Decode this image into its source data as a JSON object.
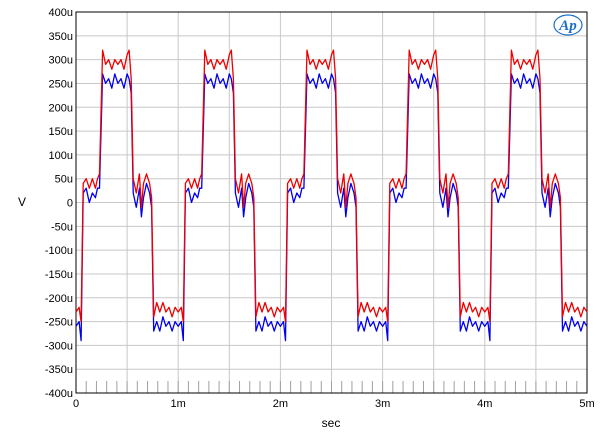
{
  "chart_data": {
    "type": "line",
    "title": "",
    "xlabel": "sec",
    "ylabel": "V",
    "xlim": [
      0,
      0.005
    ],
    "ylim": [
      -0.0004,
      0.0004
    ],
    "x_ticks": [
      {
        "value": 0,
        "label": "0"
      },
      {
        "value": 0.001,
        "label": "1m"
      },
      {
        "value": 0.002,
        "label": "2m"
      },
      {
        "value": 0.003,
        "label": "3m"
      },
      {
        "value": 0.004,
        "label": "4m"
      },
      {
        "value": 0.005,
        "label": "5m"
      }
    ],
    "y_ticks": [
      {
        "value": 0.0004,
        "label": "400u"
      },
      {
        "value": 0.00035,
        "label": "350u"
      },
      {
        "value": 0.0003,
        "label": "300u"
      },
      {
        "value": 0.00025,
        "label": "250u"
      },
      {
        "value": 0.0002,
        "label": "200u"
      },
      {
        "value": 0.00015,
        "label": "150u"
      },
      {
        "value": 0.0001,
        "label": "100u"
      },
      {
        "value": 5e-05,
        "label": "50u"
      },
      {
        "value": 0,
        "label": "0"
      },
      {
        "value": -5e-05,
        "label": "-50u"
      },
      {
        "value": -0.0001,
        "label": "-100u"
      },
      {
        "value": -0.00015,
        "label": "-150u"
      },
      {
        "value": -0.0002,
        "label": "-200u"
      },
      {
        "value": -0.00025,
        "label": "-250u"
      },
      {
        "value": -0.0003,
        "label": "-300u"
      },
      {
        "value": -0.00035,
        "label": "-350u"
      },
      {
        "value": -0.0004,
        "label": "-400u"
      }
    ],
    "grid": true,
    "logo": "Ap",
    "series": [
      {
        "color": "#0000ee",
        "period": 0.001,
        "phase_start": 3e-05,
        "shape": [
          [
            0.0,
            -0.00025
          ],
          [
            2e-05,
            -0.00029
          ],
          [
            4e-05,
            2e-05
          ],
          [
            7e-05,
            3e-05
          ],
          [
            0.0001,
            0.0
          ],
          [
            0.00013,
            2e-05
          ],
          [
            0.00016,
            1e-05
          ],
          [
            0.00018,
            3e-05
          ],
          [
            0.0002,
            3e-05
          ],
          [
            0.00023,
            0.00027
          ],
          [
            0.00026,
            0.00025
          ],
          [
            0.00029,
            0.00026
          ],
          [
            0.00032,
            0.00024
          ],
          [
            0.00035,
            0.00027
          ],
          [
            0.00038,
            0.00025
          ],
          [
            0.00041,
            0.00026
          ],
          [
            0.00044,
            0.00024
          ],
          [
            0.00047,
            0.00027
          ],
          [
            0.00049,
            0.00026
          ],
          [
            0.00051,
            0.00023
          ],
          [
            0.00053,
            2e-05
          ],
          [
            0.00056,
            -1e-05
          ],
          [
            0.00059,
            3e-05
          ],
          [
            0.00061,
            -3e-05
          ],
          [
            0.00063,
            1e-05
          ],
          [
            0.00066,
            4e-05
          ],
          [
            0.00069,
            2e-05
          ],
          [
            0.00071,
            -1e-05
          ],
          [
            0.00073,
            -0.00027
          ],
          [
            0.00076,
            -0.00025
          ],
          [
            0.00079,
            -0.00027
          ],
          [
            0.00082,
            -0.00024
          ],
          [
            0.00085,
            -0.00026
          ],
          [
            0.00088,
            -0.00025
          ],
          [
            0.00091,
            -0.00027
          ],
          [
            0.00094,
            -0.00025
          ],
          [
            0.00097,
            -0.00026
          ],
          [
            0.001,
            -0.00025
          ]
        ]
      },
      {
        "color": "#ee0000",
        "period": 0.001,
        "phase_start": 3e-05,
        "shape": [
          [
            0.0,
            -0.00022
          ],
          [
            2e-05,
            -0.00025
          ],
          [
            4e-05,
            4e-05
          ],
          [
            7e-05,
            5e-05
          ],
          [
            0.0001,
            3e-05
          ],
          [
            0.00013,
            5e-05
          ],
          [
            0.00016,
            3e-05
          ],
          [
            0.00018,
            5e-05
          ],
          [
            0.0002,
            6e-05
          ],
          [
            0.00023,
            0.00032
          ],
          [
            0.00026,
            0.00029
          ],
          [
            0.00029,
            0.0003
          ],
          [
            0.00032,
            0.00028
          ],
          [
            0.00035,
            0.0003
          ],
          [
            0.00038,
            0.00029
          ],
          [
            0.00041,
            0.0003
          ],
          [
            0.00044,
            0.00028
          ],
          [
            0.00047,
            0.00031
          ],
          [
            0.00049,
            0.00032
          ],
          [
            0.00051,
            0.00026
          ],
          [
            0.00053,
            5e-05
          ],
          [
            0.00056,
            2e-05
          ],
          [
            0.00059,
            6e-05
          ],
          [
            0.00061,
            -1e-05
          ],
          [
            0.00063,
            4e-05
          ],
          [
            0.00066,
            6e-05
          ],
          [
            0.00069,
            4e-05
          ],
          [
            0.00071,
            1e-05
          ],
          [
            0.00073,
            -0.00024
          ],
          [
            0.00076,
            -0.00021
          ],
          [
            0.00079,
            -0.00023
          ],
          [
            0.00082,
            -0.00021
          ],
          [
            0.00085,
            -0.00023
          ],
          [
            0.00088,
            -0.00022
          ],
          [
            0.00091,
            -0.00024
          ],
          [
            0.00094,
            -0.00022
          ],
          [
            0.00097,
            -0.00023
          ],
          [
            0.001,
            -0.00022
          ]
        ]
      }
    ]
  }
}
